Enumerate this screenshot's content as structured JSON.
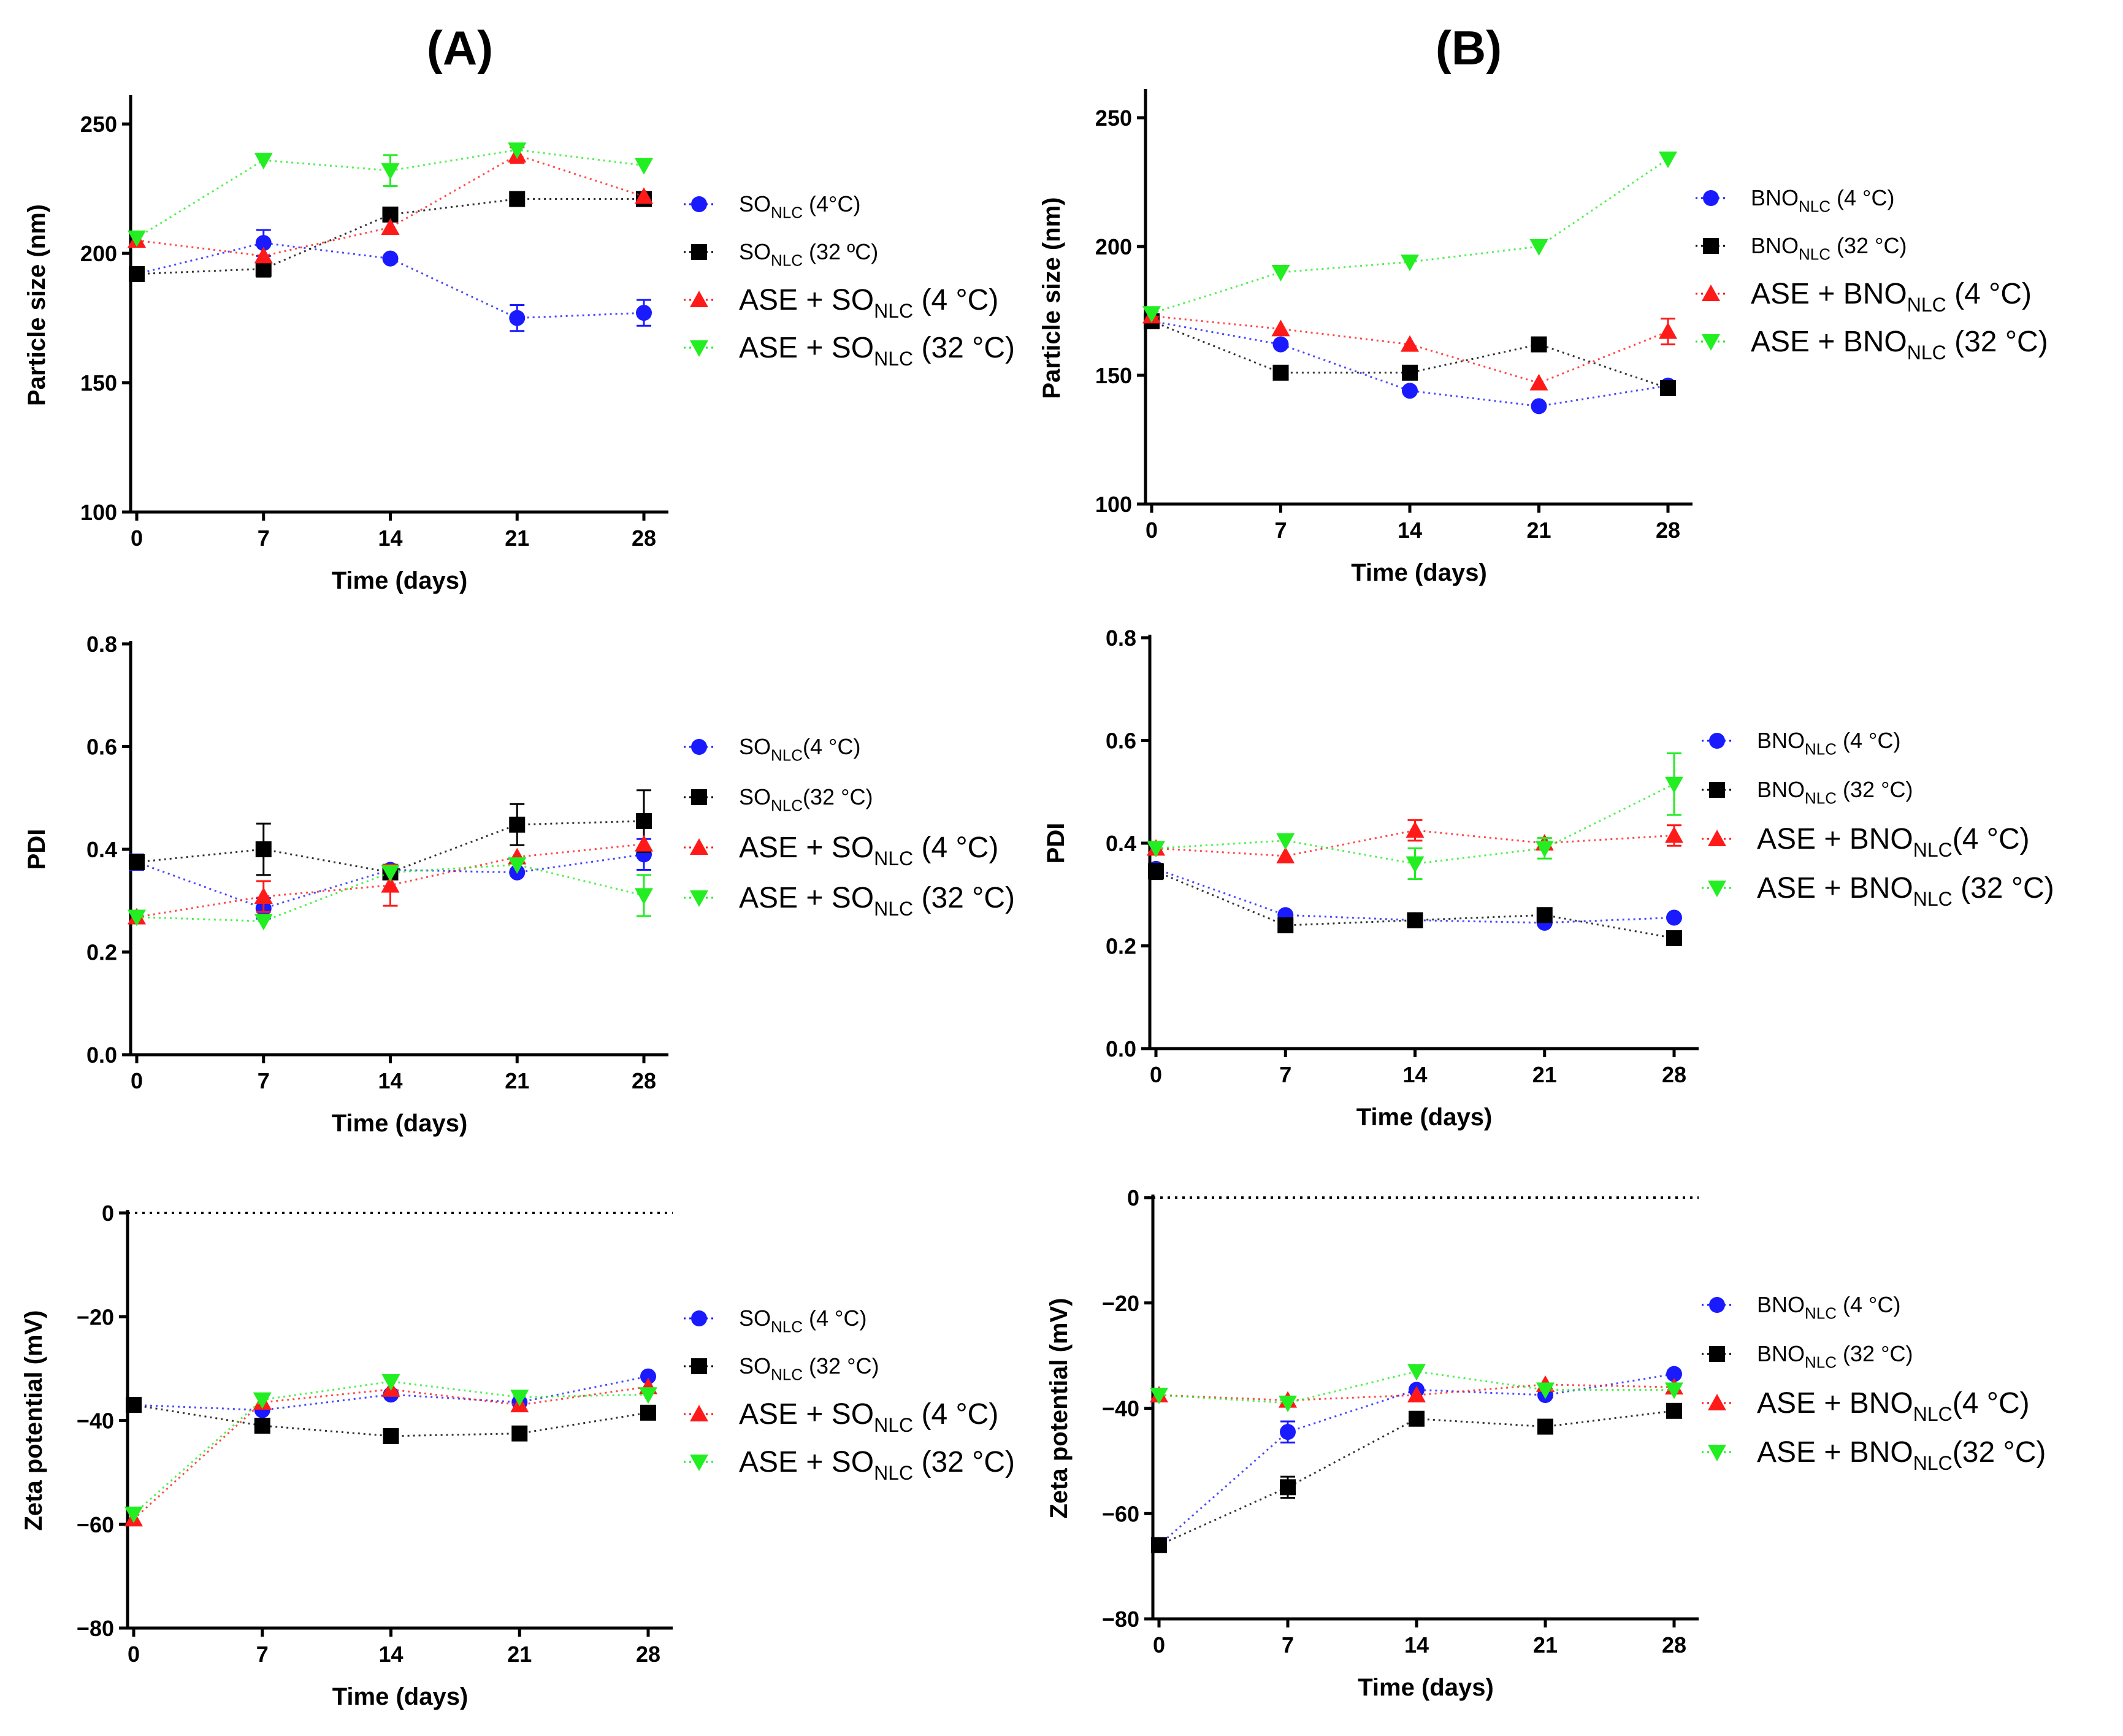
{
  "figure": {
    "panel_titles": [
      "(A)",
      "(B)"
    ]
  },
  "colors": {
    "blue": "#1a1aff",
    "black": "#000000",
    "red": "#ff1a1a",
    "green": "#22ee22"
  },
  "chart_data": [
    {
      "id": "A-size",
      "type": "scatter",
      "panel": "(A)",
      "title": "",
      "xlabel": "Time (days)",
      "ylabel": "Particle size (nm)",
      "x": [
        0,
        7,
        14,
        21,
        28
      ],
      "xticks": [
        "0",
        "7",
        "14",
        "21",
        "28"
      ],
      "ylim": [
        100,
        260
      ],
      "yticks": [
        100,
        150,
        200,
        250
      ],
      "ytick_labels": [
        "100",
        "150",
        "200",
        "250"
      ],
      "zero_line": false,
      "legend_size": "small",
      "series": [
        {
          "name": "SO",
          "sub": "NLC",
          "suffix": " (4°C)",
          "color": "blue",
          "marker": "circle",
          "values": [
            192,
            204,
            198,
            175,
            177
          ],
          "errors": [
            0,
            5,
            0,
            5,
            5
          ]
        },
        {
          "name": "SO",
          "sub": "NLC",
          "suffix": " (32 ºC)",
          "color": "black",
          "marker": "square",
          "values": [
            192,
            194,
            215,
            221,
            221
          ],
          "errors": [
            0,
            3,
            0,
            0,
            0
          ]
        },
        {
          "name": "ASE + SO",
          "sub": "NLC",
          "suffix": " (4 °C)",
          "color": "red",
          "marker": "triangle-up",
          "values": [
            205,
            199,
            210,
            238,
            222
          ],
          "errors": [
            0,
            0,
            0,
            3,
            0
          ]
        },
        {
          "name": "ASE + SO",
          "sub": "NLC",
          "suffix": " (32 °C)",
          "color": "green",
          "marker": "triangle-down",
          "values": [
            206,
            236,
            232,
            240,
            234
          ],
          "errors": [
            0,
            0,
            6,
            0,
            0
          ]
        }
      ]
    },
    {
      "id": "B-size",
      "type": "scatter",
      "panel": "(B)",
      "title": "",
      "xlabel": "Time (days)",
      "ylabel": "Particle size (nm)",
      "x": [
        0,
        7,
        14,
        21,
        28
      ],
      "xticks": [
        "0",
        "7",
        "14",
        "21",
        "28"
      ],
      "ylim": [
        100,
        260
      ],
      "yticks": [
        100,
        150,
        200,
        250
      ],
      "ytick_labels": [
        "100",
        "150",
        "200",
        "250"
      ],
      "zero_line": false,
      "legend_size": "mixed",
      "series": [
        {
          "name": "BNO",
          "sub": "NLC",
          "suffix": " (4 °C)",
          "color": "blue",
          "marker": "circle",
          "values": [
            171,
            162,
            144,
            138,
            146
          ],
          "errors": [
            0,
            0,
            0,
            0,
            0
          ]
        },
        {
          "name": "BNO",
          "sub": "NLC",
          "suffix": " (32 °C)",
          "color": "black",
          "marker": "square",
          "values": [
            171,
            151,
            151,
            162,
            145
          ],
          "errors": [
            0,
            0,
            0,
            0,
            0
          ]
        },
        {
          "name": "ASE + BNO",
          "sub": "NLC",
          "suffix": " (4 °C)",
          "color": "red",
          "marker": "triangle-up",
          "values": [
            173,
            168,
            162,
            147,
            167
          ],
          "errors": [
            0,
            0,
            0,
            0,
            5
          ]
        },
        {
          "name": "ASE + BNO",
          "sub": "NLC",
          "suffix": " (32 °C)",
          "color": "green",
          "marker": "triangle-down",
          "values": [
            174,
            190,
            194,
            200,
            234
          ],
          "errors": [
            0,
            0,
            0,
            0,
            0
          ]
        }
      ]
    },
    {
      "id": "A-pdi",
      "type": "scatter",
      "panel": "(A)",
      "title": "",
      "xlabel": "Time (days)",
      "ylabel": "PDI",
      "x": [
        0,
        7,
        14,
        21,
        28
      ],
      "xticks": [
        "0",
        "7",
        "14",
        "21",
        "28"
      ],
      "ylim": [
        0.0,
        0.8
      ],
      "yticks": [
        0.0,
        0.2,
        0.4,
        0.6,
        0.8
      ],
      "ytick_labels": [
        "0.0",
        "0.2",
        "0.4",
        "0.6",
        "0.8"
      ],
      "zero_line": false,
      "legend_size": "mixed",
      "series": [
        {
          "name": "SO",
          "sub": "NLC",
          "suffix": "(4 °C)",
          "color": "blue",
          "marker": "circle",
          "values": [
            0.375,
            0.285,
            0.36,
            0.355,
            0.39
          ],
          "errors": [
            0.015,
            0.02,
            0.01,
            0,
            0.03
          ]
        },
        {
          "name": "SO",
          "sub": "NLC",
          "suffix": "(32 °C)",
          "color": "black",
          "marker": "square",
          "values": [
            0.375,
            0.4,
            0.355,
            0.448,
            0.455
          ],
          "errors": [
            0,
            0.05,
            0,
            0.04,
            0.06
          ]
        },
        {
          "name": "ASE + SO",
          "sub": "NLC",
          "suffix": " (4 °C)",
          "color": "red",
          "marker": "triangle-up",
          "values": [
            0.268,
            0.308,
            0.33,
            0.385,
            0.41
          ],
          "errors": [
            0,
            0.03,
            0.04,
            0,
            0
          ]
        },
        {
          "name": "ASE + SO",
          "sub": "NLC",
          "suffix": " (32 °C)",
          "color": "green",
          "marker": "triangle-down",
          "values": [
            0.268,
            0.26,
            0.355,
            0.37,
            0.31
          ],
          "errors": [
            0,
            0,
            0,
            0,
            0.04
          ]
        }
      ]
    },
    {
      "id": "B-pdi",
      "type": "scatter",
      "panel": "(B)",
      "title": "",
      "xlabel": "Time (days)",
      "ylabel": "PDI",
      "x": [
        0,
        7,
        14,
        21,
        28
      ],
      "xticks": [
        "0",
        "7",
        "14",
        "21",
        "28"
      ],
      "ylim": [
        0.0,
        0.8
      ],
      "yticks": [
        0.0,
        0.2,
        0.4,
        0.6,
        0.8
      ],
      "ytick_labels": [
        "0.0",
        "0.2",
        "0.4",
        "0.6",
        "0.8"
      ],
      "zero_line": false,
      "legend_size": "mixed",
      "series": [
        {
          "name": "BNO",
          "sub": "NLC",
          "suffix": " (4 °C)",
          "color": "blue",
          "marker": "circle",
          "values": [
            0.35,
            0.26,
            0.25,
            0.245,
            0.255
          ],
          "errors": [
            0,
            0,
            0,
            0,
            0
          ]
        },
        {
          "name": "BNO",
          "sub": "NLC",
          "suffix": " (32 °C)",
          "color": "black",
          "marker": "square",
          "values": [
            0.345,
            0.24,
            0.25,
            0.26,
            0.215
          ],
          "errors": [
            0.015,
            0,
            0,
            0,
            0
          ]
        },
        {
          "name": "ASE + BNO",
          "sub": "NLC",
          "suffix": "(4 °C)",
          "color": "red",
          "marker": "triangle-up",
          "values": [
            0.39,
            0.375,
            0.425,
            0.4,
            0.415
          ],
          "errors": [
            0,
            0,
            0.02,
            0,
            0.02
          ]
        },
        {
          "name": "ASE + BNO",
          "sub": "NLC",
          "suffix": " (32 °C)",
          "color": "green",
          "marker": "triangle-down",
          "values": [
            0.39,
            0.405,
            0.36,
            0.39,
            0.515
          ],
          "errors": [
            0,
            0,
            0.03,
            0.02,
            0.06
          ]
        }
      ]
    },
    {
      "id": "A-zeta",
      "type": "scatter",
      "panel": "(A)",
      "title": "",
      "xlabel": "Time (days)",
      "ylabel": "Zeta potential (mV)",
      "x": [
        0,
        7,
        14,
        21,
        28
      ],
      "xticks": [
        "0",
        "7",
        "14",
        "21",
        "28"
      ],
      "ylim": [
        -80,
        0
      ],
      "yticks": [
        -80,
        -60,
        -40,
        -20,
        0
      ],
      "ytick_labels": [
        "−80",
        "−60",
        "−40",
        "−20",
        "0"
      ],
      "zero_line": true,
      "legend_size": "mixed",
      "series": [
        {
          "name": "SO",
          "sub": "NLC",
          "suffix": " (4 °C)",
          "color": "blue",
          "marker": "circle",
          "values": [
            -37,
            -38,
            -35,
            -36.5,
            -31.5
          ],
          "errors": [
            0,
            0,
            0,
            0,
            0
          ]
        },
        {
          "name": "SO",
          "sub": "NLC",
          "suffix": " (32 °C)",
          "color": "black",
          "marker": "square",
          "values": [
            -37,
            -41,
            -43,
            -42.5,
            -38.5
          ],
          "errors": [
            0,
            0,
            0,
            0,
            0
          ]
        },
        {
          "name": "ASE + SO",
          "sub": "NLC",
          "suffix": " (4 °C)",
          "color": "red",
          "marker": "triangle-up",
          "values": [
            -59,
            -36.5,
            -34,
            -37,
            -33.5
          ],
          "errors": [
            0,
            0,
            0,
            0,
            0
          ]
        },
        {
          "name": "ASE + SO",
          "sub": "NLC",
          "suffix": " (32 °C)",
          "color": "green",
          "marker": "triangle-down",
          "values": [
            -58,
            -36,
            -32.5,
            -35.5,
            -35
          ],
          "errors": [
            0,
            0,
            0,
            0,
            0
          ]
        }
      ]
    },
    {
      "id": "B-zeta",
      "type": "scatter",
      "panel": "(B)",
      "title": "",
      "xlabel": "Time (days)",
      "ylabel": "Zeta potential (mV)",
      "x": [
        0,
        7,
        14,
        21,
        28
      ],
      "xticks": [
        "0",
        "7",
        "14",
        "21",
        "28"
      ],
      "ylim": [
        -80,
        0
      ],
      "yticks": [
        -80,
        -60,
        -40,
        -20,
        0
      ],
      "ytick_labels": [
        "−80",
        "−60",
        "−40",
        "−20",
        "0"
      ],
      "zero_line": true,
      "legend_size": "mixed",
      "series": [
        {
          "name": "BNO",
          "sub": "NLC",
          "suffix": "  (4 °C)",
          "color": "blue",
          "marker": "circle",
          "values": [
            -66,
            -44.5,
            -36.5,
            -37.5,
            -33.5
          ],
          "errors": [
            0,
            2,
            0,
            0,
            0
          ]
        },
        {
          "name": "BNO",
          "sub": "NLC",
          "suffix": "  (32 °C)",
          "color": "black",
          "marker": "square",
          "values": [
            -66,
            -55,
            -42,
            -43.5,
            -40.5
          ],
          "errors": [
            0,
            2,
            0,
            0,
            0
          ]
        },
        {
          "name": "ASE + BNO",
          "sub": "NLC",
          "suffix": "(4 °C)",
          "color": "red",
          "marker": "triangle-up",
          "values": [
            -37.5,
            -38.5,
            -37.5,
            -35.5,
            -36
          ],
          "errors": [
            0,
            0,
            0,
            0,
            0
          ]
        },
        {
          "name": "ASE + BNO",
          "sub": "NLC",
          "suffix": "(32 °C)",
          "color": "green",
          "marker": "triangle-down",
          "values": [
            -37.5,
            -39,
            -33,
            -36.5,
            -36.5
          ],
          "errors": [
            0,
            0,
            0,
            0,
            0
          ]
        }
      ]
    }
  ]
}
